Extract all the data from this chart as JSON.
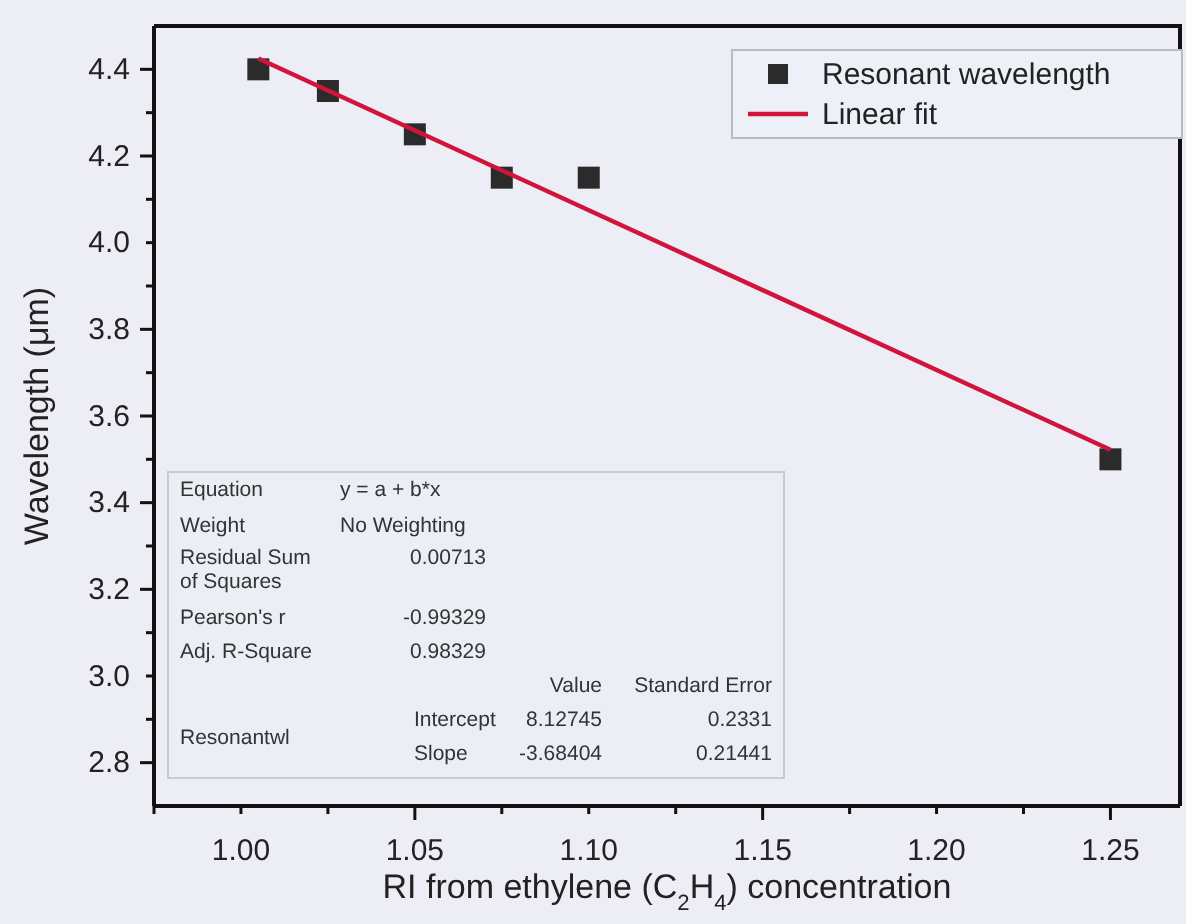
{
  "chart_data": {
    "type": "scatter",
    "xlabel": "RI from ethylene (C$_{2}$H$_{4}$) concentration",
    "ylabel": "Wavelength (μm)",
    "xlim": [
      0.975,
      1.27
    ],
    "ylim": [
      2.7,
      4.5
    ],
    "xticks": [
      {
        "value": 0.975,
        "label": null
      },
      {
        "value": 1,
        "label": "1.00"
      },
      {
        "value": 1.025,
        "label": null
      },
      1.05,
      {
        "value": 1.075,
        "label": null
      },
      {
        "value": 1.1,
        "label": "1.10"
      },
      {
        "value": 1.125,
        "label": null
      },
      1.15,
      {
        "value": 1.175,
        "label": null
      },
      {
        "value": 1.2,
        "label": "1.20"
      },
      {
        "value": 1.225,
        "label": null
      },
      1.25
    ],
    "yticks": [
      2.8,
      {
        "value": 2.9,
        "label": null
      },
      {
        "value": 3,
        "label": "3.0"
      },
      {
        "value": 3.1,
        "label": null
      },
      3.2,
      {
        "value": 3.3,
        "label": null
      },
      3.4,
      {
        "value": 3.5,
        "label": null
      },
      3.6,
      {
        "value": 3.7,
        "label": null
      },
      3.8,
      {
        "value": 3.9,
        "label": null
      },
      {
        "value": 4,
        "label": "4.0"
      },
      {
        "value": 4.1,
        "label": null
      },
      4.2,
      {
        "value": 4.3,
        "label": null
      },
      4.4
    ],
    "legend": "top right",
    "grid": false,
    "series": [
      {
        "name": "Resonant wavelength",
        "marker": "square",
        "color": "#2b2b2b",
        "x": [
          1.005,
          1.025,
          1.05,
          1.075,
          1.1,
          1.25
        ],
        "values": [
          4.4,
          4.35,
          4.25,
          4.15,
          4.15,
          3.5
        ]
      },
      {
        "name": "Linear fit",
        "type": "line",
        "line_style": "solid",
        "color": "#d0143c",
        "x": [
          1.005,
          1.25
        ],
        "values": [
          4.425,
          3.522
        ]
      }
    ],
    "annotations": [
      "Equation",
      "y = a + b*x",
      "Weight",
      "No Weighting",
      "Residual Sum",
      "of Squares",
      "0.00713",
      "Pearson's r",
      "-0.99329",
      "Adj. R-Square",
      "0.98329",
      "Value",
      "Standard Error",
      "Resonantwl",
      "Intercept",
      "8.12745",
      "0.2331",
      "Slope",
      "-3.68404",
      "0.21441"
    ]
  }
}
